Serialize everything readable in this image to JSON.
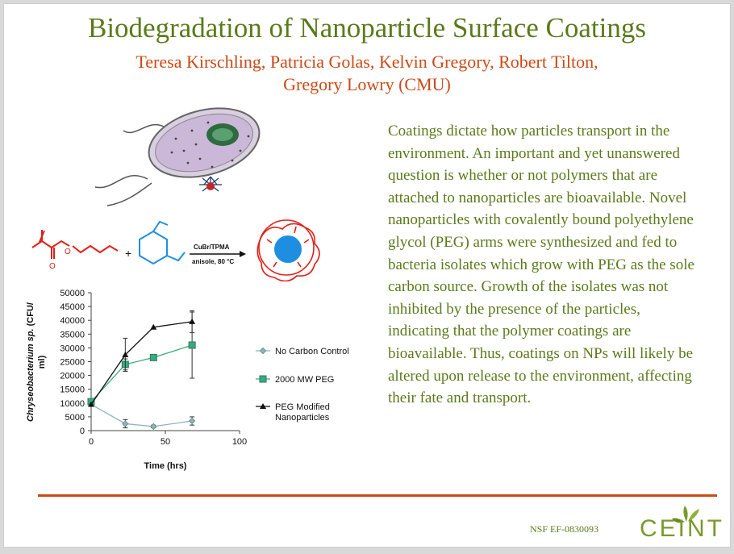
{
  "slide": {
    "title": "Biodegradation of Nanoparticle Surface Coatings",
    "authors_line1": "Teresa Kirschling, Patricia Golas, Kelvin Gregory, Robert Tilton,",
    "authors_line2": "Gregory Lowry (CMU)",
    "body": "Coatings dictate how particles transport in the environment. An important and yet unanswered question is whether or not polymers that are attached to nanoparticles are bioavailable. Novel nanoparticles with covalently bound polyethylene glycol (PEG) arms were synthesized and fed to bacteria isolates which grow with PEG as the sole carbon source.  Growth of the isolates was not inhibited by the presence of the particles, indicating that the polymer coatings are bioavailable. Thus, coatings on NPs will likely be altered upon release to the environment, affecting their fate and transport.",
    "grant": "NSF EF-0830093",
    "logo_text": "CEINT"
  },
  "scheme": {
    "reagent": "CuBr/TPMA",
    "conditions": "anisole, 80 °C",
    "plus": "+"
  },
  "colors": {
    "title": "#5b7a1b",
    "accent": "#cc4a17",
    "monomer_red": "#e0201a",
    "monomer_blue": "#1e8fe0"
  },
  "chart_data": {
    "type": "line",
    "xlabel": "Time (hrs)",
    "ylabel": "Chryseobacterium sp. (CFU/ml)",
    "ylabel_italic": "Chryseobacterium sp.",
    "ylabel_rest": " (CFU/",
    "ylabel_line2": "ml)",
    "xlim": [
      0,
      100
    ],
    "ylim": [
      0,
      50000
    ],
    "xticks": [
      0,
      50,
      100
    ],
    "yticks": [
      0,
      5000,
      10000,
      15000,
      20000,
      25000,
      30000,
      35000,
      40000,
      45000,
      50000
    ],
    "grid": false,
    "legend": "right",
    "series": [
      {
        "name": "No Carbon Control",
        "marker": "diamond",
        "color": "#8fb6b6",
        "x": [
          0,
          23,
          42,
          68
        ],
        "y": [
          9500,
          2500,
          1500,
          3500
        ],
        "err": [
          0,
          1500,
          500,
          1500
        ]
      },
      {
        "name": "2000 MW PEG",
        "marker": "square",
        "color": "#3aaa80",
        "x": [
          0,
          23,
          42,
          68
        ],
        "y": [
          10500,
          24000,
          26500,
          31000
        ],
        "err": [
          0,
          2000,
          0,
          12000
        ]
      },
      {
        "name": "PEG Modified Nanoparticles",
        "marker": "triangle",
        "color": "#111111",
        "x": [
          0,
          23,
          42,
          68
        ],
        "y": [
          9500,
          27500,
          37500,
          39500
        ],
        "err": [
          0,
          6000,
          0,
          4000
        ]
      }
    ],
    "legend_labels": {
      "s1": "No Carbon Control",
      "s2": "2000 MW PEG",
      "s3_line1": "PEG Modified",
      "s3_line2": "Nanoparticles"
    }
  }
}
